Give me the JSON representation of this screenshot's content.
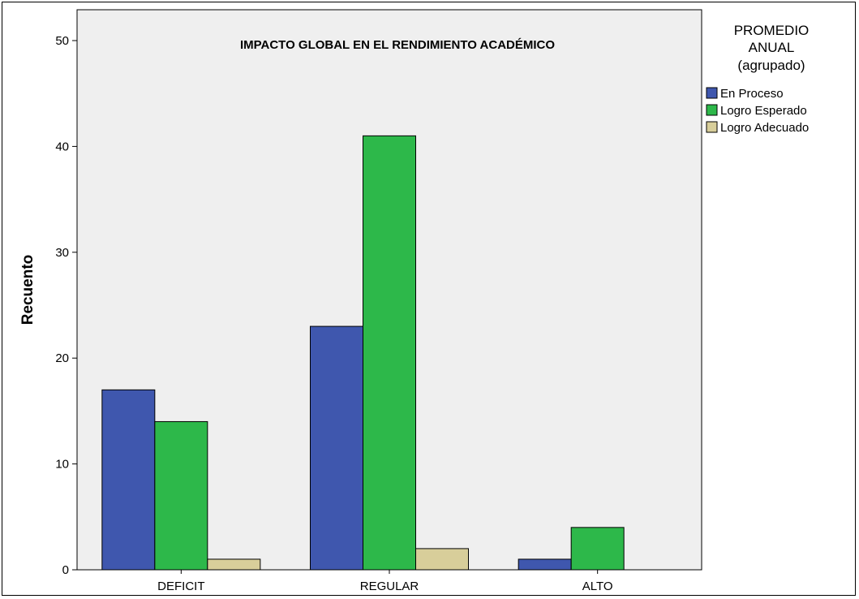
{
  "chart_data": {
    "type": "bar",
    "title": "IMPACTO GLOBAL EN EL RENDIMIENTO ACADÉMICO",
    "xlabel": "",
    "ylabel": "Recuento",
    "categories": [
      "DEFICIT",
      "REGULAR",
      "ALTO"
    ],
    "series": [
      {
        "name": "En Proceso",
        "values": [
          17,
          23,
          1
        ],
        "color": "#3F57AE"
      },
      {
        "name": "Logro Esperado",
        "values": [
          14,
          41,
          4
        ],
        "color": "#2DB84A"
      },
      {
        "name": "Logro Adecuado",
        "values": [
          1,
          2,
          0
        ],
        "color": "#D8CE9A"
      }
    ],
    "ylim": [
      0,
      50
    ],
    "yticks": [
      0,
      10,
      20,
      30,
      40,
      50
    ],
    "grid": false,
    "legend": {
      "title_lines": [
        "PROMEDIO",
        "ANUAL",
        "(agrupado)"
      ],
      "placement": "right"
    },
    "plot_background": "#EFEFEF"
  }
}
